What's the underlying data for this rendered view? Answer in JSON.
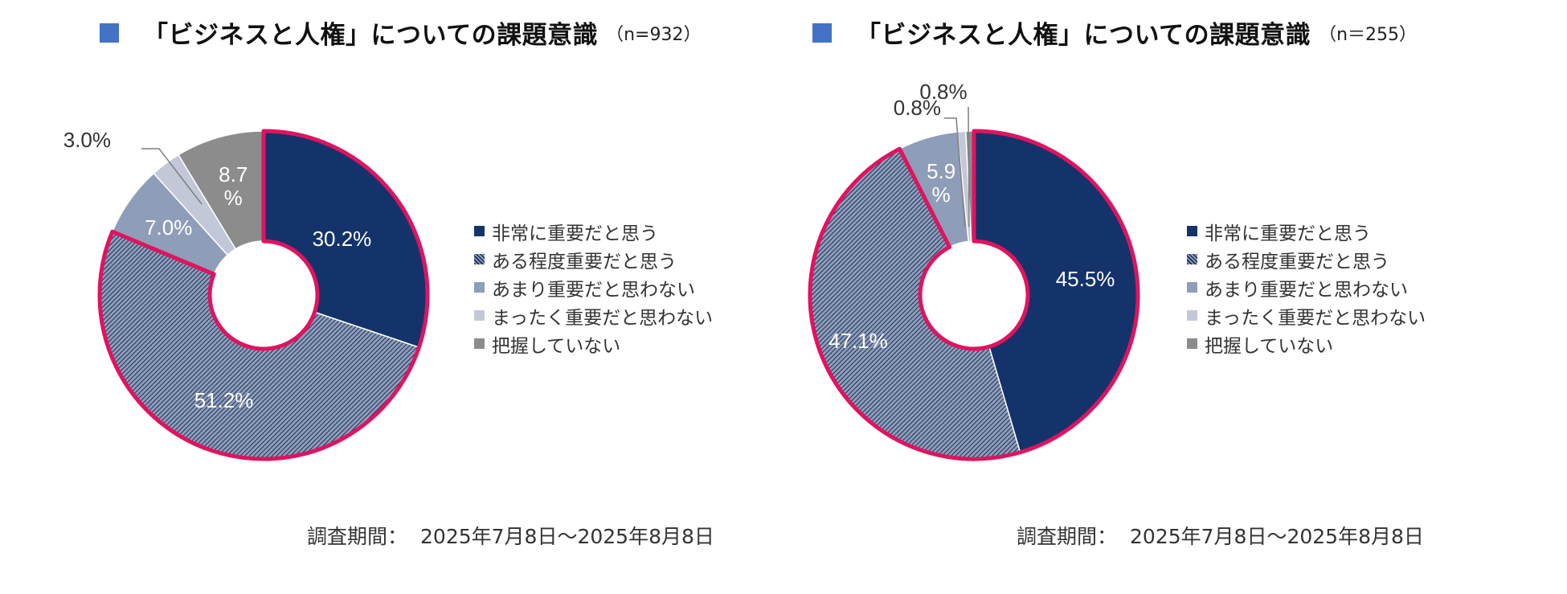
{
  "categories": [
    "非常に重要だと思う",
    "ある程度重要だと思う",
    "あまり重要だと思わない",
    "まったく重要だと思わない",
    "把握していない"
  ],
  "colors": [
    "#14336b",
    "hatch",
    "#8e9db8",
    "#c3c8d8",
    "#8c8c8c"
  ],
  "highlight_color": "#e0135f",
  "charts": [
    {
      "title": "「ビジネスと人権」についての課題意識",
      "n_label": "（n=932）",
      "period_label": "調査期間：",
      "period_value": "2025年7月8日～2025年8月8日"
    },
    {
      "title": "「ビジネスと人権」についての課題意識",
      "n_label": "（n＝255）",
      "period_label": "調査期間：",
      "period_value": "2025年7月8日～2025年8月8日"
    }
  ],
  "chart_data": [
    {
      "type": "pie",
      "donut": true,
      "categories": [
        "非常に重要だと思う",
        "ある程度重要だと思う",
        "あまり重要だと思わない",
        "まったく重要だと思わない",
        "把握していない"
      ],
      "values": [
        30.2,
        51.2,
        7.0,
        3.0,
        8.7
      ],
      "labels": [
        "30.2%",
        "51.2%",
        "7.0%",
        "3.0%",
        "8.7 %"
      ],
      "highlighted_categories": [
        "非常に重要だと思う",
        "ある程度重要だと思う"
      ],
      "legend": "right"
    },
    {
      "type": "pie",
      "donut": true,
      "categories": [
        "非常に重要だと思う",
        "ある程度重要だと思う",
        "あまり重要だと思わない",
        "まったく重要だと思わない",
        "把握していない"
      ],
      "values": [
        45.5,
        47.1,
        5.9,
        0.8,
        0.8
      ],
      "labels": [
        "45.5%",
        "47.1%",
        "5.9 %",
        "0.8%",
        "0.8%"
      ],
      "highlighted_categories": [
        "非常に重要だと思う",
        "ある程度重要だと思う"
      ],
      "legend": "right"
    }
  ]
}
